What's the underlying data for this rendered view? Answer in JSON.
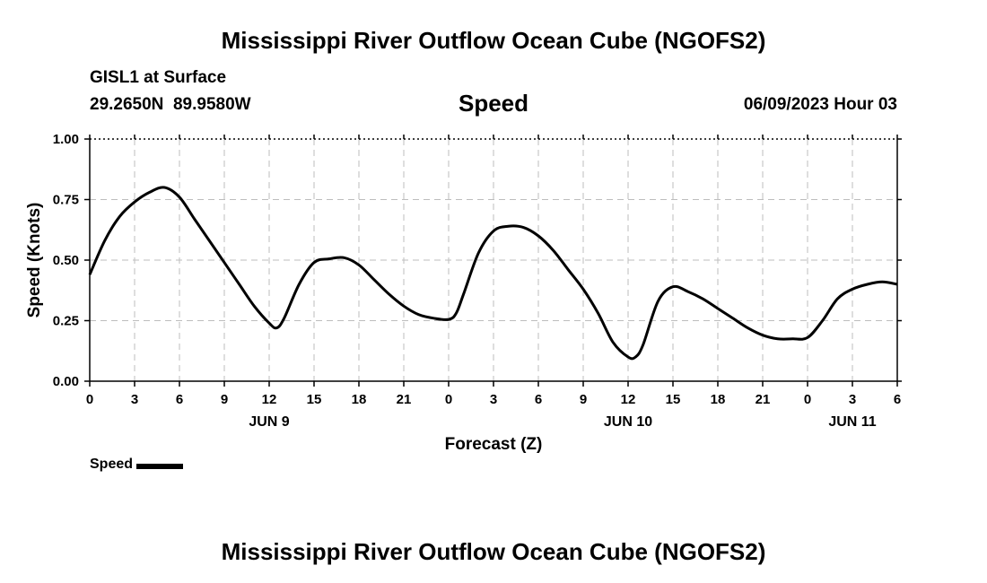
{
  "page": {
    "title": "Mississippi River Outflow Ocean Cube (NGOFS2)",
    "footer_title": "Mississippi River Outflow Ocean Cube (NGOFS2)",
    "station": "GISL1 at Surface",
    "lat": "29.2650N",
    "lon": "89.9580W",
    "variable": "Speed",
    "datetime": "06/09/2023 Hour 03"
  },
  "chart_data": {
    "type": "line",
    "title": "Speed",
    "xlabel": "Forecast (Z)",
    "ylabel": "Speed (Knots)",
    "xlim": [
      0,
      54
    ],
    "ylim": [
      0,
      1
    ],
    "grid": true,
    "x_ticks": [
      0,
      3,
      6,
      9,
      12,
      15,
      18,
      21,
      24,
      27,
      30,
      33,
      36,
      39,
      42,
      45,
      48,
      51,
      54
    ],
    "x_tick_labels": [
      "0",
      "3",
      "6",
      "9",
      "12",
      "15",
      "18",
      "21",
      "0",
      "3",
      "6",
      "9",
      "12",
      "15",
      "18",
      "21",
      "0",
      "3",
      "6"
    ],
    "y_ticks": [
      0,
      0.25,
      0.5,
      0.75,
      1.0
    ],
    "y_tick_labels": [
      "0.00",
      "0.25",
      "0.50",
      "0.75",
      "1.00"
    ],
    "day_labels": [
      {
        "x": 12,
        "label": "JUN 9"
      },
      {
        "x": 36,
        "label": "JUN 10"
      },
      {
        "x": 51,
        "label": "JUN 11"
      }
    ],
    "legend": [
      {
        "name": "Speed",
        "color": "#000000"
      }
    ],
    "series": [
      {
        "name": "Speed",
        "color": "#000000",
        "x": [
          0,
          1,
          2,
          3,
          4,
          5,
          6,
          7,
          8,
          9,
          10,
          11,
          12,
          12.5,
          13,
          14,
          15,
          16,
          17,
          18,
          19,
          20,
          21,
          22,
          23,
          24,
          24.5,
          25,
          26,
          27,
          28,
          29,
          30,
          31,
          32,
          33,
          34,
          35,
          36,
          36.5,
          37,
          38,
          39,
          40,
          41,
          42,
          43,
          44,
          45,
          46,
          47,
          48,
          49,
          50,
          51,
          52,
          53,
          54
        ],
        "y": [
          0.44,
          0.58,
          0.68,
          0.74,
          0.78,
          0.8,
          0.76,
          0.67,
          0.58,
          0.49,
          0.4,
          0.31,
          0.24,
          0.22,
          0.26,
          0.4,
          0.49,
          0.505,
          0.51,
          0.48,
          0.42,
          0.36,
          0.31,
          0.275,
          0.26,
          0.255,
          0.28,
          0.36,
          0.53,
          0.62,
          0.64,
          0.635,
          0.6,
          0.54,
          0.46,
          0.38,
          0.28,
          0.16,
          0.1,
          0.1,
          0.15,
          0.33,
          0.39,
          0.37,
          0.34,
          0.3,
          0.26,
          0.22,
          0.19,
          0.175,
          0.175,
          0.18,
          0.25,
          0.34,
          0.38,
          0.4,
          0.41,
          0.4
        ]
      }
    ]
  }
}
